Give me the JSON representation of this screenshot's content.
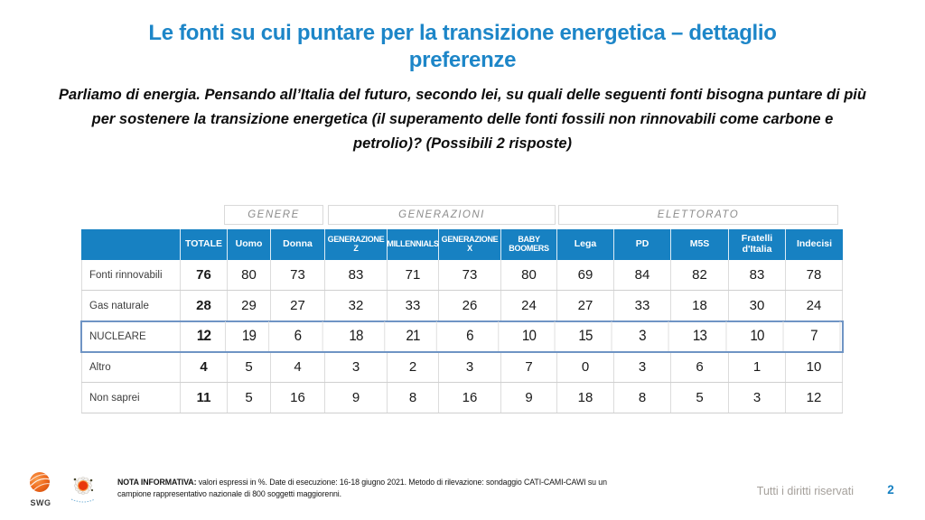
{
  "slide": {
    "title_line1": "Le fonti su cui puntare per la transizione energetica – dettaglio",
    "title_line2": "preferenze",
    "subtitle_line1": "Parliamo di energia. Pensando all’Italia del futuro, secondo lei, su quali delle seguenti fonti bisogna puntare di più",
    "subtitle_line2": "per sostenere la transizione energetica (il superamento delle fonti fossili non rinnovabili come carbone e",
    "subtitle_line3": "petrolio)? (Possibili 2 risposte)"
  },
  "table": {
    "group_headers": [
      {
        "label": "GENERE"
      },
      {
        "label": "GENERAZIONI"
      },
      {
        "label": "ELETTORATO"
      }
    ],
    "columns": [
      "",
      "TOTALE",
      "Uomo",
      "Donna",
      "GENERAZIONE Z",
      "MILLENNIALS",
      "GENERAZIONE X",
      "BABY BOOMERS",
      "Lega",
      "PD",
      "M5S",
      "Fratelli d'Italia",
      "Indecisi"
    ],
    "rows": [
      {
        "label": "Fonti rinnovabili",
        "values": [
          76,
          80,
          73,
          83,
          71,
          73,
          80,
          69,
          84,
          82,
          83,
          78
        ],
        "highlight": false
      },
      {
        "label": "Gas naturale",
        "values": [
          28,
          29,
          27,
          32,
          33,
          26,
          24,
          27,
          33,
          18,
          30,
          24
        ],
        "highlight": false
      },
      {
        "label": "NUCLEARE",
        "values": [
          12,
          19,
          6,
          18,
          21,
          6,
          10,
          15,
          3,
          13,
          10,
          7
        ],
        "highlight": true
      },
      {
        "label": "Altro",
        "values": [
          4,
          5,
          4,
          3,
          2,
          3,
          7,
          0,
          3,
          6,
          1,
          10
        ],
        "highlight": false
      },
      {
        "label": "Non saprei",
        "values": [
          11,
          5,
          16,
          9,
          8,
          16,
          9,
          18,
          8,
          5,
          3,
          12
        ],
        "highlight": false
      }
    ]
  },
  "footer": {
    "note_label": "NOTA INFORMATIVA:",
    "note_text": " valori espressi in %. Date di esecuzione: 16-18 giugno 2021. Metodo di rilevazione: sondaggio CATI-CAMI-CAWI su un campione rappresentativo nazionale di 800 soggetti maggiorenni.",
    "rights": "Tutti i diritti riservati",
    "page_number": "2",
    "swg_logo_text": "SWG"
  },
  "colors": {
    "title_blue": "#1d86c8",
    "header_blue": "#1781c2",
    "highlight_border": "#6f94c4",
    "group_text_gray": "#8c8c8c",
    "rights_gray": "#a5a09b"
  }
}
